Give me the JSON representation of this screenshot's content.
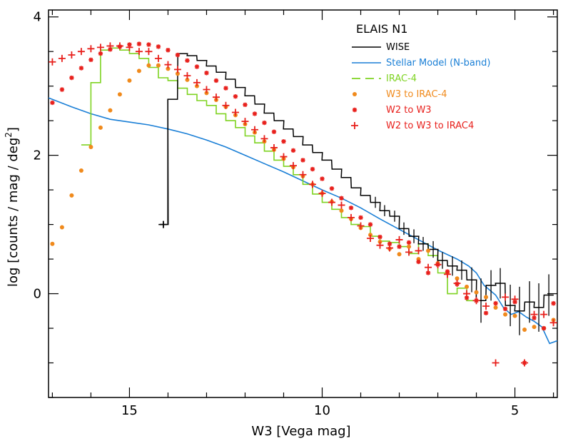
{
  "chart_data": {
    "type": "line",
    "title": "ELAIS N1",
    "xlabel": "W3 [Vega mag]",
    "ylabel_parts": [
      "log [counts / mag / deg",
      "2",
      "]"
    ],
    "xlim": [
      17.1,
      3.9
    ],
    "ylim": [
      -1.5,
      4.1
    ],
    "x_ticks": [
      15,
      10,
      5
    ],
    "x_tick_labels": [
      "15",
      "10",
      "5"
    ],
    "y_ticks": [
      0,
      2,
      4
    ],
    "y_tick_labels": [
      "0",
      "2",
      "4"
    ],
    "legend": [
      {
        "key": "wise",
        "label": "WISE",
        "color": "#000000",
        "style": "step"
      },
      {
        "key": "stellar",
        "label": "Stellar Model (N-band)",
        "color": "#1a7fd6",
        "style": "line"
      },
      {
        "key": "irac4",
        "label": "IRAC-4",
        "color": "#7ed321",
        "style": "dashed"
      },
      {
        "key": "w3irac",
        "label": "W3 to IRAC-4",
        "color": "#f08a1c",
        "style": "dot"
      },
      {
        "key": "w2w3",
        "label": "W2 to W3",
        "color": "#e8201c",
        "style": "star"
      },
      {
        "key": "w2w3irac",
        "label": "W2 to W3 to IRAC4",
        "color": "#e8201c",
        "style": "plus"
      }
    ],
    "series": [
      {
        "key": "wise",
        "name": "WISE",
        "color": "#000000",
        "x": [
          14.12,
          13.88,
          13.62,
          13.38,
          13.12,
          12.88,
          12.62,
          12.38,
          12.12,
          11.88,
          11.62,
          11.38,
          11.12,
          10.88,
          10.62,
          10.38,
          10.12,
          9.88,
          9.62,
          9.38,
          9.12,
          8.88,
          8.62,
          8.38,
          8.12,
          7.88,
          7.62,
          7.38,
          7.12,
          6.88,
          6.62,
          6.38,
          6.12,
          5.88,
          5.62,
          5.38,
          5.12,
          4.88,
          4.62,
          4.38,
          4.12
        ],
        "y": [
          1.0,
          2.81,
          3.47,
          3.44,
          3.37,
          3.29,
          3.2,
          3.1,
          2.98,
          2.86,
          2.74,
          2.61,
          2.5,
          2.38,
          2.27,
          2.15,
          2.04,
          1.93,
          1.8,
          1.68,
          1.53,
          1.42,
          1.32,
          1.2,
          1.12,
          0.94,
          0.83,
          0.72,
          0.64,
          0.48,
          0.4,
          0.34,
          0.2,
          -0.1,
          0.12,
          0.15,
          -0.17,
          -0.25,
          -0.12,
          -0.2,
          -0.02
        ],
        "err": [
          0,
          0,
          0,
          0,
          0,
          0,
          0,
          0,
          0,
          0,
          0,
          0,
          0,
          0,
          0,
          0,
          0,
          0,
          0,
          0,
          0,
          0,
          0.08,
          0.08,
          0.08,
          0.09,
          0.1,
          0.1,
          0.12,
          0.12,
          0.14,
          0.14,
          0.18,
          0.32,
          0.22,
          0.22,
          0.3,
          0.35,
          0.3,
          0.35,
          0.3
        ]
      },
      {
        "key": "stellar",
        "name": "Stellar Model (N-band)",
        "color": "#1a7fd6",
        "x": [
          17.1,
          16.5,
          16.0,
          15.5,
          15.0,
          14.5,
          14.0,
          13.5,
          13.0,
          12.5,
          12.0,
          11.5,
          11.0,
          10.5,
          10.0,
          9.5,
          9.0,
          8.5,
          8.0,
          7.5,
          7.0,
          6.5,
          6.2,
          6.0,
          5.8,
          5.5,
          5.3,
          5.1,
          4.9,
          4.7,
          4.5,
          4.3,
          4.1,
          3.9
        ],
        "y": [
          2.83,
          2.7,
          2.6,
          2.52,
          2.48,
          2.44,
          2.38,
          2.31,
          2.22,
          2.12,
          2.0,
          1.88,
          1.76,
          1.63,
          1.5,
          1.38,
          1.24,
          1.08,
          0.93,
          0.78,
          0.63,
          0.5,
          0.4,
          0.3,
          0.12,
          -0.02,
          -0.2,
          -0.3,
          -0.26,
          -0.34,
          -0.4,
          -0.48,
          -0.72,
          -0.68
        ]
      },
      {
        "key": "irac4",
        "name": "IRAC-4",
        "color": "#7ed321",
        "x": [
          16.125,
          15.875,
          15.625,
          15.375,
          15.125,
          14.875,
          14.625,
          14.375,
          14.125,
          13.875,
          13.625,
          13.375,
          13.125,
          12.875,
          12.625,
          12.375,
          12.125,
          11.875,
          11.625,
          11.375,
          11.125,
          10.875,
          10.625,
          10.375,
          10.125,
          9.875,
          9.625,
          9.375,
          9.125,
          8.875,
          8.625,
          8.375,
          8.125,
          7.875,
          7.625,
          7.375,
          7.125,
          6.875,
          6.625,
          6.375,
          6.125
        ],
        "y": [
          2.15,
          3.05,
          3.52,
          3.55,
          3.52,
          3.47,
          3.4,
          3.27,
          3.12,
          3.08,
          2.97,
          2.88,
          2.79,
          2.72,
          2.6,
          2.5,
          2.4,
          2.28,
          2.18,
          2.06,
          1.93,
          1.84,
          1.72,
          1.58,
          1.44,
          1.32,
          1.22,
          1.1,
          1.0,
          0.97,
          0.83,
          0.76,
          0.74,
          0.68,
          0.58,
          0.72,
          0.55,
          0.3,
          0.0,
          0.08,
          -0.1
        ]
      },
      {
        "key": "w3irac",
        "name": "W3 to IRAC-4",
        "color": "#f08a1c",
        "x": [
          17.0,
          16.75,
          16.5,
          16.25,
          16.0,
          15.75,
          15.5,
          15.25,
          15.0,
          14.75,
          14.5,
          14.25,
          14.0,
          13.75,
          13.5,
          13.25,
          13.0,
          12.75,
          12.5,
          12.25,
          12.0,
          11.75,
          11.5,
          11.25,
          11.0,
          10.75,
          10.5,
          10.25,
          10.0,
          9.75,
          9.5,
          9.25,
          9.0,
          8.75,
          8.5,
          8.25,
          8.0,
          7.75,
          7.5,
          7.25,
          7.0,
          6.75,
          6.5,
          6.25,
          6.0,
          5.75,
          5.5,
          5.25,
          5.0,
          4.75,
          4.5,
          4.25,
          4.0
        ],
        "y": [
          0.72,
          0.96,
          1.42,
          1.78,
          2.12,
          2.4,
          2.65,
          2.88,
          3.08,
          3.22,
          3.3,
          3.3,
          3.25,
          3.18,
          3.09,
          3.0,
          2.9,
          2.8,
          2.7,
          2.58,
          2.45,
          2.33,
          2.2,
          2.08,
          1.95,
          1.83,
          1.7,
          1.58,
          1.45,
          1.33,
          1.2,
          1.08,
          0.95,
          0.85,
          0.75,
          0.65,
          0.57,
          0.68,
          0.5,
          0.62,
          0.44,
          0.3,
          0.22,
          0.1,
          0.02,
          -0.05,
          -0.2,
          -0.3,
          -0.32,
          -0.52,
          -0.48,
          -0.5,
          -0.38
        ]
      },
      {
        "key": "w2w3",
        "name": "W2 to W3",
        "color": "#e8201c",
        "x": [
          17.0,
          16.75,
          16.5,
          16.25,
          16.0,
          15.75,
          15.5,
          15.25,
          15.0,
          14.75,
          14.5,
          14.25,
          14.0,
          13.75,
          13.5,
          13.25,
          13.0,
          12.75,
          12.5,
          12.25,
          12.0,
          11.75,
          11.5,
          11.25,
          11.0,
          10.75,
          10.5,
          10.25,
          10.0,
          9.75,
          9.5,
          9.25,
          9.0,
          8.75,
          8.5,
          8.25,
          8.0,
          7.75,
          7.5,
          7.25,
          7.0,
          6.75,
          6.5,
          6.25,
          6.0,
          5.75,
          5.5,
          5.25,
          5.0,
          4.75,
          4.5,
          4.25,
          4.0
        ],
        "y": [
          2.76,
          2.95,
          3.12,
          3.26,
          3.38,
          3.47,
          3.53,
          3.57,
          3.6,
          3.61,
          3.6,
          3.57,
          3.52,
          3.45,
          3.37,
          3.28,
          3.19,
          3.08,
          2.97,
          2.85,
          2.73,
          2.6,
          2.47,
          2.34,
          2.2,
          2.07,
          1.93,
          1.8,
          1.66,
          1.52,
          1.38,
          1.24,
          1.1,
          1.0,
          0.82,
          0.72,
          0.68,
          0.74,
          0.46,
          0.3,
          0.42,
          0.32,
          0.14,
          -0.06,
          -0.1,
          -0.28,
          -0.14,
          -0.22,
          -0.12,
          -1.0,
          -0.35,
          -0.5,
          -0.14
        ]
      },
      {
        "key": "w2w3irac",
        "name": "W2 to W3 to IRAC4",
        "color": "#e8201c",
        "x": [
          17.0,
          16.75,
          16.5,
          16.25,
          16.0,
          15.75,
          15.5,
          15.25,
          15.0,
          14.75,
          14.5,
          14.25,
          14.0,
          13.75,
          13.5,
          13.25,
          13.0,
          12.75,
          12.5,
          12.25,
          12.0,
          11.75,
          11.5,
          11.25,
          11.0,
          10.75,
          10.5,
          10.25,
          10.0,
          9.75,
          9.5,
          9.25,
          9.0,
          8.75,
          8.5,
          8.25,
          8.0,
          7.75,
          7.5,
          7.25,
          7.0,
          6.75,
          6.5,
          6.25,
          6.0,
          5.75,
          5.5,
          5.25,
          5.0,
          4.75,
          4.5,
          4.25,
          4.0
        ],
        "y": [
          3.35,
          3.4,
          3.45,
          3.5,
          3.54,
          3.56,
          3.58,
          3.58,
          3.56,
          3.5,
          3.5,
          3.4,
          3.31,
          3.24,
          3.15,
          3.05,
          2.95,
          2.84,
          2.72,
          2.62,
          2.49,
          2.37,
          2.24,
          2.11,
          1.98,
          1.85,
          1.72,
          1.58,
          1.45,
          1.32,
          1.28,
          1.1,
          0.98,
          0.8,
          0.7,
          0.66,
          0.78,
          0.6,
          0.62,
          0.38,
          0.42,
          0.28,
          0.15,
          0.0,
          -0.1,
          -0.18,
          -1.0,
          -0.05,
          -0.08,
          -1.0,
          -0.3,
          -0.3,
          -0.42
        ]
      }
    ]
  }
}
